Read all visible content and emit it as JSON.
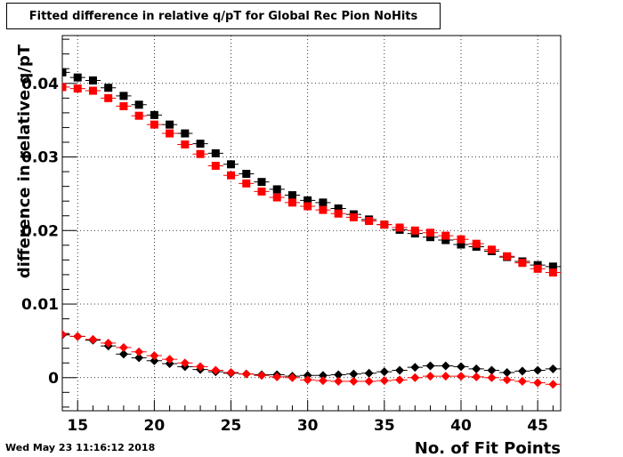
{
  "datestamp": "Wed May 23 11:16:12 2018",
  "chart_data": {
    "type": "scatter",
    "title": "Fitted difference in relative q/pT for Global Rec Pion NoHits",
    "xlabel": "No. of Fit Points",
    "ylabel": "difference in relative q/pT",
    "xlim": [
      14,
      46.5
    ],
    "ylim": [
      -0.0045,
      0.0465
    ],
    "xticks": [
      15,
      20,
      25,
      30,
      35,
      40,
      45
    ],
    "yticks": [
      0,
      0.01,
      0.02,
      0.03,
      0.04
    ],
    "ytick_labels": [
      "0",
      "0.01",
      "0.02",
      "0.03",
      "0.04"
    ],
    "grid": true,
    "x": [
      14,
      15,
      16,
      17,
      18,
      19,
      20,
      21,
      22,
      23,
      24,
      25,
      26,
      27,
      28,
      29,
      30,
      31,
      32,
      33,
      34,
      35,
      36,
      37,
      38,
      39,
      40,
      41,
      42,
      43,
      44,
      45,
      46
    ],
    "series": [
      {
        "marker": "square",
        "color": "#000000",
        "values": [
          0.0415,
          0.0408,
          0.0404,
          0.0394,
          0.0383,
          0.0371,
          0.0357,
          0.0344,
          0.0332,
          0.0318,
          0.0305,
          0.029,
          0.0277,
          0.0266,
          0.0256,
          0.0248,
          0.0241,
          0.0238,
          0.023,
          0.0222,
          0.0215,
          0.0208,
          0.0201,
          0.0196,
          0.0191,
          0.0187,
          0.0181,
          0.0178,
          0.0172,
          0.0164,
          0.0158,
          0.0153,
          0.0151
        ]
      },
      {
        "marker": "square",
        "color": "#ff0000",
        "values": [
          0.0395,
          0.0393,
          0.039,
          0.038,
          0.0369,
          0.0356,
          0.0344,
          0.0332,
          0.0317,
          0.0304,
          0.0288,
          0.0275,
          0.0264,
          0.0253,
          0.0245,
          0.0238,
          0.0233,
          0.0228,
          0.0223,
          0.0218,
          0.0213,
          0.0208,
          0.0204,
          0.02,
          0.0197,
          0.0193,
          0.0188,
          0.0182,
          0.0174,
          0.0165,
          0.0156,
          0.0148,
          0.0143
        ]
      },
      {
        "marker": "diamond",
        "color": "#000000",
        "values": [
          0.0058,
          0.0056,
          0.0051,
          0.0043,
          0.0032,
          0.0027,
          0.0023,
          0.0019,
          0.0015,
          0.0011,
          0.0008,
          0.0006,
          0.0005,
          0.0004,
          0.0004,
          0.0002,
          0.0003,
          0.0003,
          0.0004,
          0.0005,
          0.0006,
          0.0008,
          0.001,
          0.0014,
          0.0016,
          0.0016,
          0.0015,
          0.0012,
          0.001,
          0.0007,
          0.0009,
          0.001,
          0.0012
        ]
      },
      {
        "marker": "diamond",
        "color": "#ff0000",
        "values": [
          0.0059,
          0.0056,
          0.0052,
          0.0047,
          0.0041,
          0.0035,
          0.003,
          0.0025,
          0.002,
          0.0015,
          0.001,
          0.0007,
          0.0005,
          0.0003,
          0.0001,
          0.0,
          -0.0003,
          -0.0004,
          -0.0005,
          -0.0005,
          -0.0005,
          -0.0004,
          -0.0003,
          0.0,
          0.0002,
          0.0002,
          0.0002,
          0.0001,
          0.0,
          -0.0003,
          -0.0005,
          -0.0007,
          -0.0009
        ]
      }
    ]
  }
}
